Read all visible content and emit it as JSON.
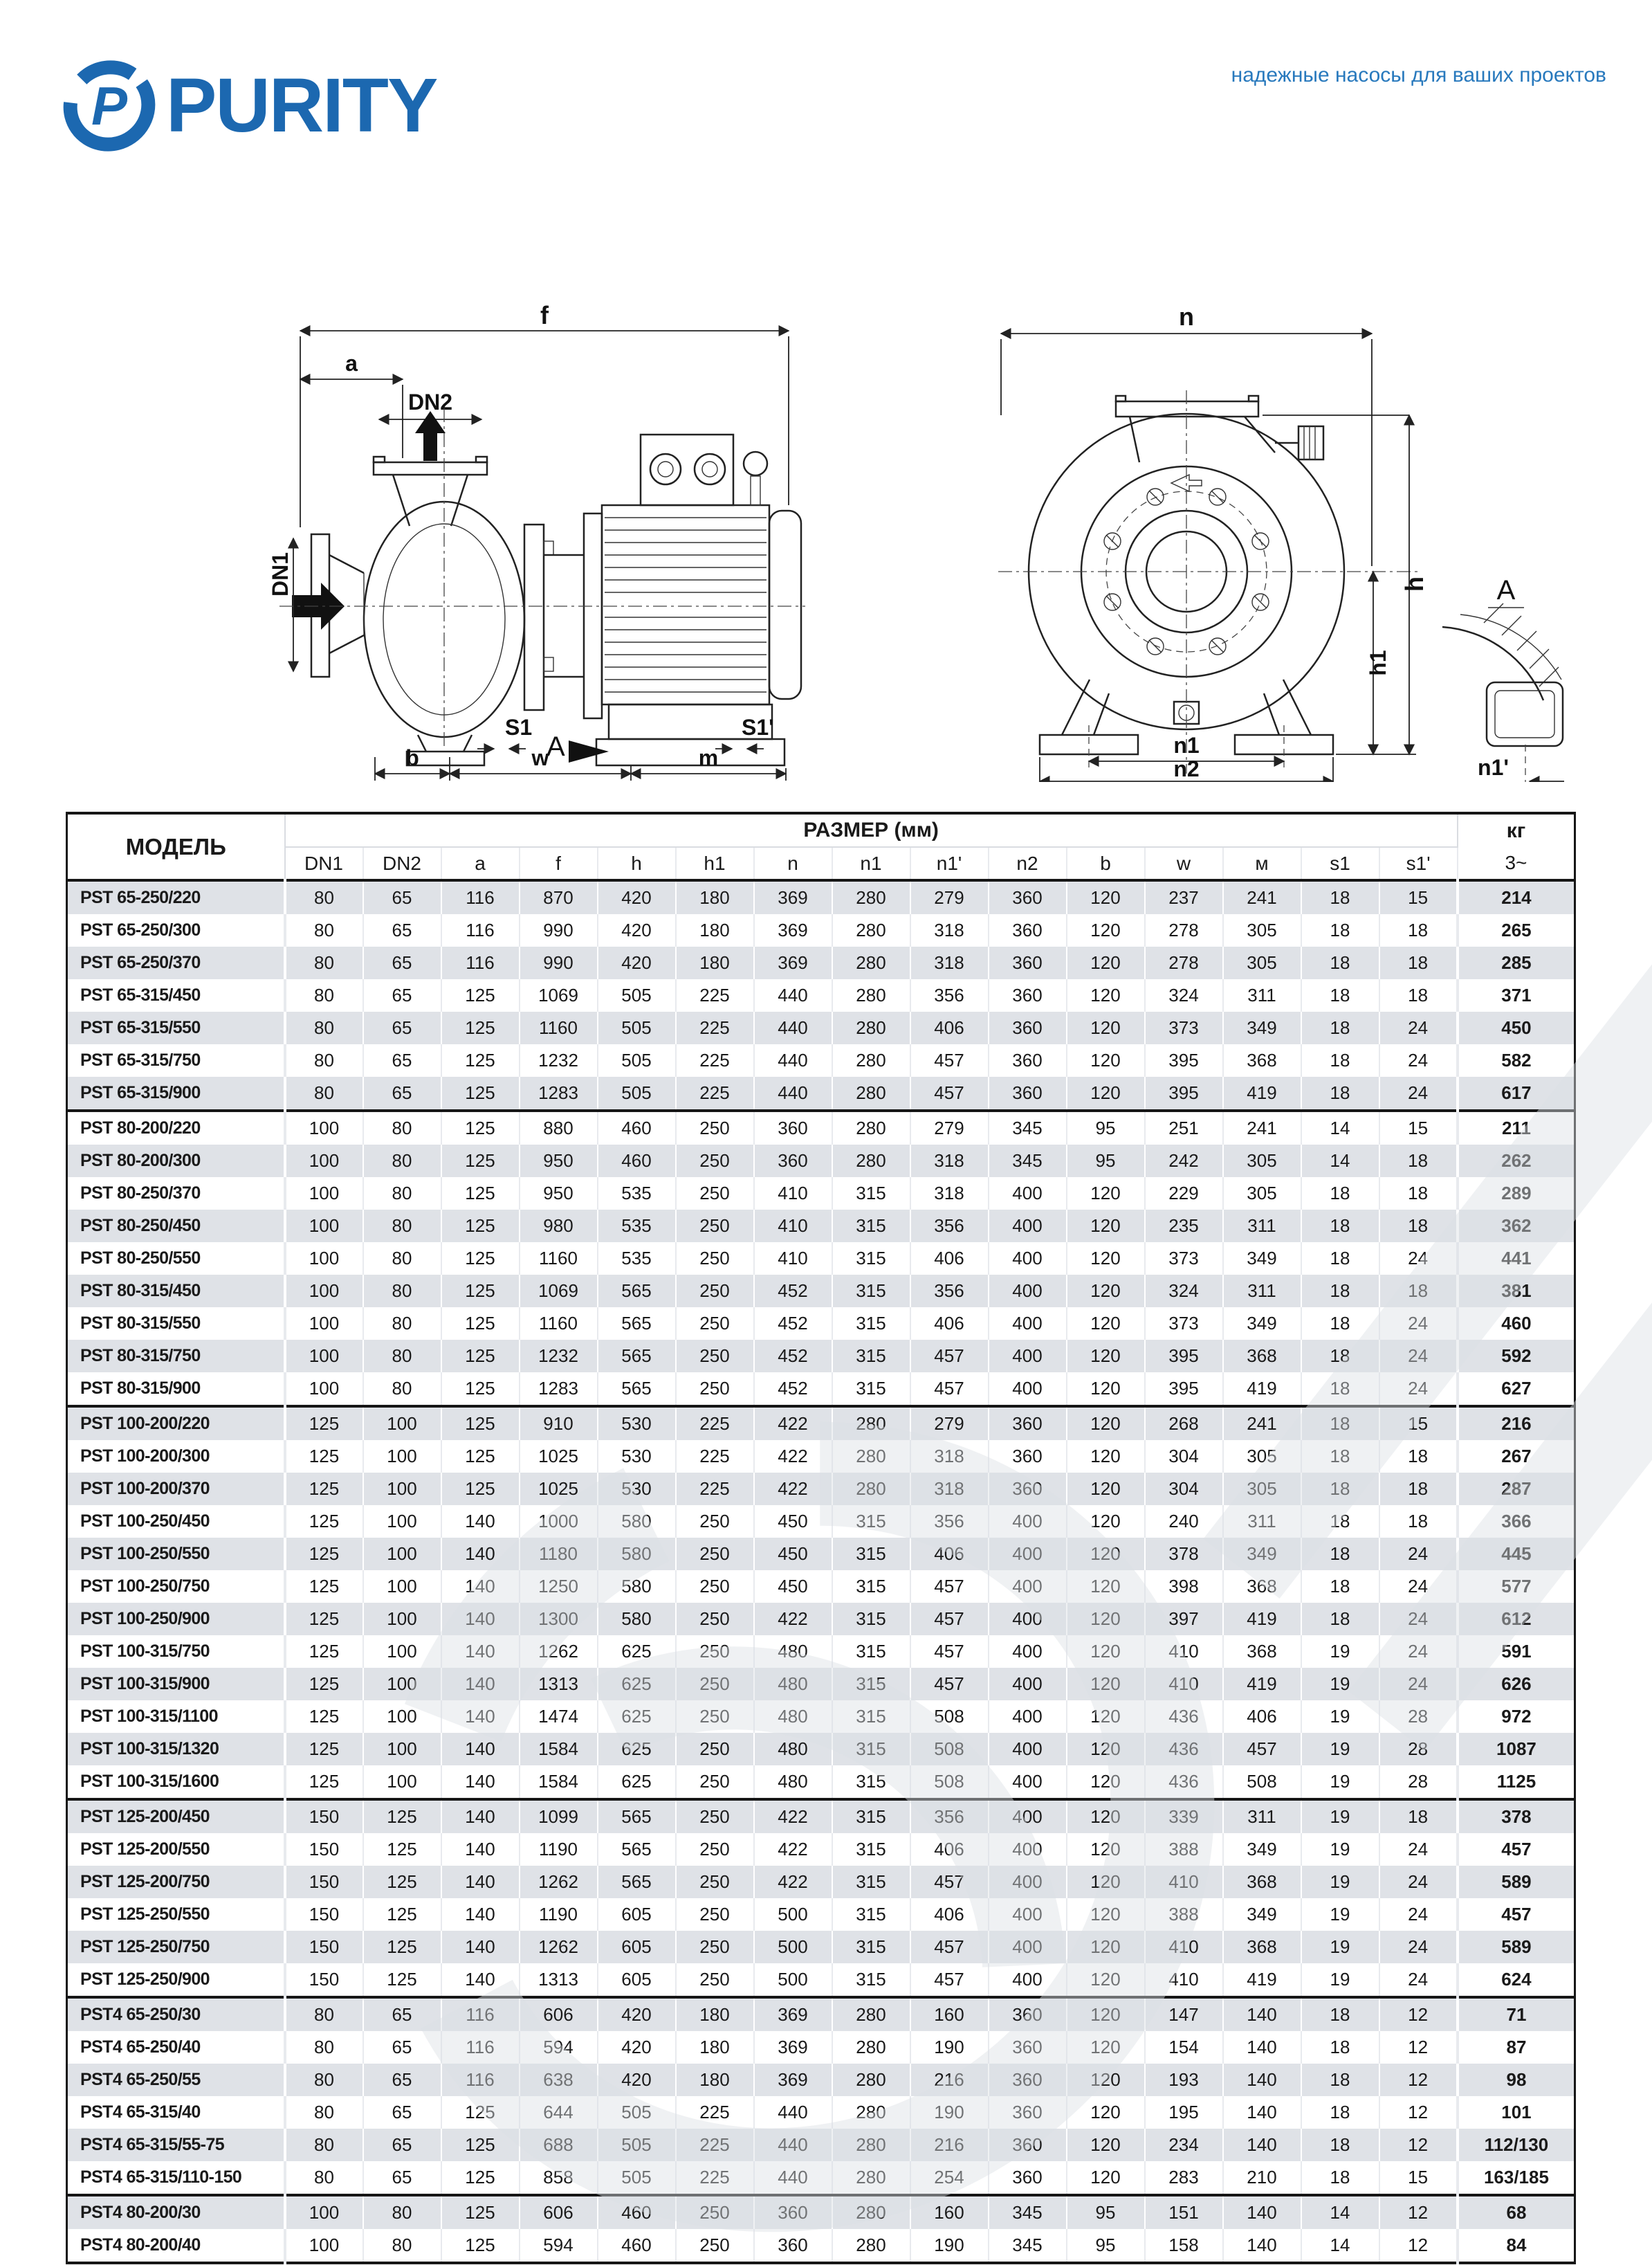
{
  "header": {
    "brand": "PURITY",
    "logo_letter": "P",
    "tagline": "надежные насосы для ваших проектов",
    "brand_color": "#1c68b0",
    "tagline_color": "#2879bd"
  },
  "drawings": {
    "side": {
      "f": "f",
      "a": "a",
      "dn2": "DN2",
      "dn1": "DN1",
      "s1": "S1",
      "view": "A",
      "s1p": "S1'",
      "b": "b",
      "w": "w",
      "m": "m"
    },
    "front": {
      "n": "n",
      "h": "h",
      "h1": "h1",
      "n1": "n1",
      "n2": "n2",
      "view": "A",
      "n1p": "n1'"
    }
  },
  "table": {
    "col_model": "МОДЕЛЬ",
    "col_size": "РАЗМЕР (мм)",
    "col_kg": "кг",
    "sub_kg": "3~",
    "sub_cols": [
      "DN1",
      "DN2",
      "a",
      "f",
      "h",
      "h1",
      "n",
      "n1",
      "n1'",
      "n2",
      "b",
      "w",
      "м",
      "s1",
      "s1'"
    ],
    "group_breaks": [
      7,
      16,
      28,
      34,
      40
    ],
    "row_gray": "#dfe2e7",
    "rows": [
      {
        "model": "PST 65-250/220",
        "values": [
          80,
          65,
          116,
          870,
          420,
          180,
          369,
          280,
          279,
          360,
          120,
          237,
          241,
          18,
          15
        ],
        "kg": "214"
      },
      {
        "model": "PST 65-250/300",
        "values": [
          80,
          65,
          116,
          990,
          420,
          180,
          369,
          280,
          318,
          360,
          120,
          278,
          305,
          18,
          18
        ],
        "kg": "265"
      },
      {
        "model": "PST 65-250/370",
        "values": [
          80,
          65,
          116,
          990,
          420,
          180,
          369,
          280,
          318,
          360,
          120,
          278,
          305,
          18,
          18
        ],
        "kg": "285"
      },
      {
        "model": "PST 65-315/450",
        "values": [
          80,
          65,
          125,
          1069,
          505,
          225,
          440,
          280,
          356,
          360,
          120,
          324,
          311,
          18,
          18
        ],
        "kg": "371"
      },
      {
        "model": "PST 65-315/550",
        "values": [
          80,
          65,
          125,
          1160,
          505,
          225,
          440,
          280,
          406,
          360,
          120,
          373,
          349,
          18,
          24
        ],
        "kg": "450"
      },
      {
        "model": "PST 65-315/750",
        "values": [
          80,
          65,
          125,
          1232,
          505,
          225,
          440,
          280,
          457,
          360,
          120,
          395,
          368,
          18,
          24
        ],
        "kg": "582"
      },
      {
        "model": "PST 65-315/900",
        "values": [
          80,
          65,
          125,
          1283,
          505,
          225,
          440,
          280,
          457,
          360,
          120,
          395,
          419,
          18,
          24
        ],
        "kg": "617"
      },
      {
        "model": "PST 80-200/220",
        "values": [
          100,
          80,
          125,
          880,
          460,
          250,
          360,
          280,
          279,
          345,
          95,
          251,
          241,
          14,
          15
        ],
        "kg": "211"
      },
      {
        "model": "PST 80-200/300",
        "values": [
          100,
          80,
          125,
          950,
          460,
          250,
          360,
          280,
          318,
          345,
          95,
          242,
          305,
          14,
          18
        ],
        "kg": "262"
      },
      {
        "model": "PST 80-250/370",
        "values": [
          100,
          80,
          125,
          950,
          535,
          250,
          410,
          315,
          318,
          400,
          120,
          229,
          305,
          18,
          18
        ],
        "kg": "289"
      },
      {
        "model": "PST 80-250/450",
        "values": [
          100,
          80,
          125,
          980,
          535,
          250,
          410,
          315,
          356,
          400,
          120,
          235,
          311,
          18,
          18
        ],
        "kg": "362"
      },
      {
        "model": "PST 80-250/550",
        "values": [
          100,
          80,
          125,
          1160,
          535,
          250,
          410,
          315,
          406,
          400,
          120,
          373,
          349,
          18,
          24
        ],
        "kg": "441"
      },
      {
        "model": "PST 80-315/450",
        "values": [
          100,
          80,
          125,
          1069,
          565,
          250,
          452,
          315,
          356,
          400,
          120,
          324,
          311,
          18,
          18
        ],
        "kg": "381"
      },
      {
        "model": "PST 80-315/550",
        "values": [
          100,
          80,
          125,
          1160,
          565,
          250,
          452,
          315,
          406,
          400,
          120,
          373,
          349,
          18,
          24
        ],
        "kg": "460"
      },
      {
        "model": "PST 80-315/750",
        "values": [
          100,
          80,
          125,
          1232,
          565,
          250,
          452,
          315,
          457,
          400,
          120,
          395,
          368,
          18,
          24
        ],
        "kg": "592"
      },
      {
        "model": "PST 80-315/900",
        "values": [
          100,
          80,
          125,
          1283,
          565,
          250,
          452,
          315,
          457,
          400,
          120,
          395,
          419,
          18,
          24
        ],
        "kg": "627"
      },
      {
        "model": "PST 100-200/220",
        "values": [
          125,
          100,
          125,
          910,
          530,
          225,
          422,
          280,
          279,
          360,
          120,
          268,
          241,
          18,
          15
        ],
        "kg": "216"
      },
      {
        "model": "PST 100-200/300",
        "values": [
          125,
          100,
          125,
          1025,
          530,
          225,
          422,
          280,
          318,
          360,
          120,
          304,
          305,
          18,
          18
        ],
        "kg": "267"
      },
      {
        "model": "PST 100-200/370",
        "values": [
          125,
          100,
          125,
          1025,
          530,
          225,
          422,
          280,
          318,
          360,
          120,
          304,
          305,
          18,
          18
        ],
        "kg": "287"
      },
      {
        "model": "PST 100-250/450",
        "values": [
          125,
          100,
          140,
          1000,
          580,
          250,
          450,
          315,
          356,
          400,
          120,
          240,
          311,
          18,
          18
        ],
        "kg": "366"
      },
      {
        "model": "PST 100-250/550",
        "values": [
          125,
          100,
          140,
          1180,
          580,
          250,
          450,
          315,
          406,
          400,
          120,
          378,
          349,
          18,
          24
        ],
        "kg": "445"
      },
      {
        "model": "PST 100-250/750",
        "values": [
          125,
          100,
          140,
          1250,
          580,
          250,
          450,
          315,
          457,
          400,
          120,
          398,
          368,
          18,
          24
        ],
        "kg": "577"
      },
      {
        "model": "PST 100-250/900",
        "values": [
          125,
          100,
          140,
          1300,
          580,
          250,
          422,
          315,
          457,
          400,
          120,
          397,
          419,
          18,
          24
        ],
        "kg": "612"
      },
      {
        "model": "PST 100-315/750",
        "values": [
          125,
          100,
          140,
          1262,
          625,
          250,
          480,
          315,
          457,
          400,
          120,
          410,
          368,
          19,
          24
        ],
        "kg": "591"
      },
      {
        "model": "PST 100-315/900",
        "values": [
          125,
          100,
          140,
          1313,
          625,
          250,
          480,
          315,
          457,
          400,
          120,
          410,
          419,
          19,
          24
        ],
        "kg": "626"
      },
      {
        "model": "PST 100-315/1100",
        "values": [
          125,
          100,
          140,
          1474,
          625,
          250,
          480,
          315,
          508,
          400,
          120,
          436,
          406,
          19,
          28
        ],
        "kg": "972"
      },
      {
        "model": "PST 100-315/1320",
        "values": [
          125,
          100,
          140,
          1584,
          625,
          250,
          480,
          315,
          508,
          400,
          120,
          436,
          457,
          19,
          28
        ],
        "kg": "1087"
      },
      {
        "model": "PST 100-315/1600",
        "values": [
          125,
          100,
          140,
          1584,
          625,
          250,
          480,
          315,
          508,
          400,
          120,
          436,
          508,
          19,
          28
        ],
        "kg": "1125"
      },
      {
        "model": "PST 125-200/450",
        "values": [
          150,
          125,
          140,
          1099,
          565,
          250,
          422,
          315,
          356,
          400,
          120,
          339,
          311,
          19,
          18
        ],
        "kg": "378"
      },
      {
        "model": "PST 125-200/550",
        "values": [
          150,
          125,
          140,
          1190,
          565,
          250,
          422,
          315,
          406,
          400,
          120,
          388,
          349,
          19,
          24
        ],
        "kg": "457"
      },
      {
        "model": "PST 125-200/750",
        "values": [
          150,
          125,
          140,
          1262,
          565,
          250,
          422,
          315,
          457,
          400,
          120,
          410,
          368,
          19,
          24
        ],
        "kg": "589"
      },
      {
        "model": "PST 125-250/550",
        "values": [
          150,
          125,
          140,
          1190,
          605,
          250,
          500,
          315,
          406,
          400,
          120,
          388,
          349,
          19,
          24
        ],
        "kg": "457"
      },
      {
        "model": "PST 125-250/750",
        "values": [
          150,
          125,
          140,
          1262,
          605,
          250,
          500,
          315,
          457,
          400,
          120,
          410,
          368,
          19,
          24
        ],
        "kg": "589"
      },
      {
        "model": "PST 125-250/900",
        "values": [
          150,
          125,
          140,
          1313,
          605,
          250,
          500,
          315,
          457,
          400,
          120,
          410,
          419,
          19,
          24
        ],
        "kg": "624"
      },
      {
        "model": "PST4 65-250/30",
        "values": [
          80,
          65,
          116,
          606,
          420,
          180,
          369,
          280,
          160,
          360,
          120,
          147,
          140,
          18,
          12
        ],
        "kg": "71"
      },
      {
        "model": "PST4 65-250/40",
        "values": [
          80,
          65,
          116,
          594,
          420,
          180,
          369,
          280,
          190,
          360,
          120,
          154,
          140,
          18,
          12
        ],
        "kg": "87"
      },
      {
        "model": "PST4 65-250/55",
        "values": [
          80,
          65,
          116,
          638,
          420,
          180,
          369,
          280,
          216,
          360,
          120,
          193,
          140,
          18,
          12
        ],
        "kg": "98"
      },
      {
        "model": "PST4 65-315/40",
        "values": [
          80,
          65,
          125,
          644,
          505,
          225,
          440,
          280,
          190,
          360,
          120,
          195,
          140,
          18,
          12
        ],
        "kg": "101"
      },
      {
        "model": "PST4 65-315/55-75",
        "values": [
          80,
          65,
          125,
          688,
          505,
          225,
          440,
          280,
          216,
          360,
          120,
          234,
          140,
          18,
          12
        ],
        "kg": "112/130"
      },
      {
        "model": "PST4 65-315/110-150",
        "values": [
          80,
          65,
          125,
          858,
          505,
          225,
          440,
          280,
          254,
          360,
          120,
          283,
          210,
          18,
          15
        ],
        "kg": "163/185"
      },
      {
        "model": "PST4 80-200/30",
        "values": [
          100,
          80,
          125,
          606,
          460,
          250,
          360,
          280,
          160,
          345,
          95,
          151,
          140,
          14,
          12
        ],
        "kg": "68"
      },
      {
        "model": "PST4 80-200/40",
        "values": [
          100,
          80,
          125,
          594,
          460,
          250,
          360,
          280,
          190,
          345,
          95,
          158,
          140,
          14,
          12
        ],
        "kg": "84"
      }
    ]
  }
}
